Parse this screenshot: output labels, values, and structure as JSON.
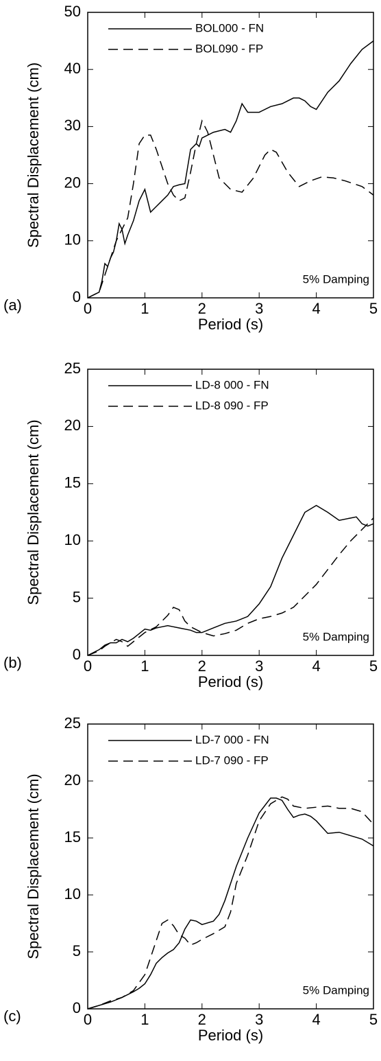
{
  "chart_data": [
    {
      "type": "line",
      "panel_label": "(a)",
      "xlabel": "Period (s)",
      "ylabel": "Spectral Displacement (cm)",
      "annotation": "5% Damping",
      "xlim": [
        0,
        5
      ],
      "xticks": [
        0,
        1,
        2,
        3,
        4,
        5
      ],
      "ylim": [
        0,
        50
      ],
      "yticks": [
        0,
        10,
        20,
        30,
        40,
        50
      ],
      "legend": "upper left",
      "series": [
        {
          "name": "BOL000 - FN",
          "color": "#000000",
          "line_style": "solid",
          "x": [
            0,
            0.1,
            0.2,
            0.25,
            0.3,
            0.35,
            0.4,
            0.45,
            0.5,
            0.55,
            0.6,
            0.65,
            0.7,
            0.8,
            0.9,
            1.0,
            1.1,
            1.2,
            1.3,
            1.4,
            1.5,
            1.6,
            1.7,
            1.8,
            1.9,
            1.95,
            2.0,
            2.2,
            2.4,
            2.5,
            2.6,
            2.7,
            2.8,
            3.0,
            3.2,
            3.4,
            3.6,
            3.7,
            3.8,
            3.9,
            4.0,
            4.2,
            4.4,
            4.6,
            4.8,
            5.0
          ],
          "values": [
            0,
            0.5,
            1,
            3,
            6,
            5.5,
            7,
            8,
            10,
            13,
            12,
            9.5,
            11,
            13.5,
            17,
            19,
            15,
            16,
            17,
            18,
            19.5,
            19.8,
            20,
            26,
            27,
            26.5,
            28,
            29,
            29.5,
            29,
            31,
            34,
            32.5,
            32.5,
            33.5,
            34,
            35,
            35,
            34.5,
            33.5,
            33,
            36,
            38,
            41,
            43.5,
            45
          ]
        },
        {
          "name": "BOL090 - FP",
          "color": "#000000",
          "line_style": "dashed",
          "x": [
            0,
            0.2,
            0.3,
            0.4,
            0.5,
            0.6,
            0.7,
            0.8,
            0.9,
            1.0,
            1.1,
            1.2,
            1.3,
            1.4,
            1.5,
            1.6,
            1.7,
            1.8,
            1.9,
            2.0,
            2.1,
            2.2,
            2.3,
            2.5,
            2.7,
            2.9,
            3.1,
            3.2,
            3.3,
            3.5,
            3.7,
            3.9,
            4.1,
            4.3,
            4.5,
            4.8,
            5.0
          ],
          "values": [
            0,
            1,
            4,
            7,
            10,
            12,
            14,
            20,
            27,
            28.5,
            28.5,
            26,
            23,
            20,
            18,
            17,
            17.5,
            22,
            27,
            31,
            29,
            25,
            21,
            19,
            18.5,
            21,
            25,
            26,
            25.5,
            22,
            19.5,
            20.5,
            21.2,
            21,
            20.5,
            19.5,
            18
          ]
        }
      ]
    },
    {
      "type": "line",
      "panel_label": "(b)",
      "xlabel": "Period (s)",
      "ylabel": "Spectral Displacement (cm)",
      "annotation": "5% Damping",
      "xlim": [
        0,
        5
      ],
      "xticks": [
        0,
        1,
        2,
        3,
        4,
        5
      ],
      "ylim": [
        0,
        25
      ],
      "yticks": [
        0,
        5,
        10,
        15,
        20,
        25
      ],
      "legend": "upper left",
      "series": [
        {
          "name": "LD-8 000 - FN",
          "color": "#000000",
          "line_style": "solid",
          "x": [
            0,
            0.2,
            0.3,
            0.4,
            0.5,
            0.6,
            0.7,
            0.8,
            0.9,
            1.0,
            1.1,
            1.2,
            1.3,
            1.4,
            1.5,
            1.6,
            1.8,
            1.9,
            2.0,
            2.2,
            2.4,
            2.6,
            2.8,
            3.0,
            3.2,
            3.4,
            3.6,
            3.8,
            4.0,
            4.2,
            4.4,
            4.6,
            4.7,
            4.8,
            4.9,
            5.0
          ],
          "values": [
            0,
            0.5,
            0.9,
            1.1,
            1.1,
            1.4,
            1.2,
            1.5,
            1.9,
            2.3,
            2.2,
            2.4,
            2.5,
            2.6,
            2.5,
            2.4,
            2.2,
            2.0,
            2.0,
            2.4,
            2.8,
            3.0,
            3.4,
            4.5,
            6.0,
            8.5,
            10.5,
            12.5,
            13.1,
            12.5,
            11.8,
            12.0,
            12.1,
            11.5,
            11.3,
            11.5
          ]
        },
        {
          "name": "LD-8 090 - FP",
          "color": "#000000",
          "line_style": "dashed",
          "x": [
            0,
            0.2,
            0.3,
            0.4,
            0.5,
            0.6,
            0.7,
            0.8,
            1.0,
            1.2,
            1.4,
            1.5,
            1.6,
            1.7,
            1.8,
            2.0,
            2.2,
            2.4,
            2.6,
            2.8,
            3.0,
            3.2,
            3.4,
            3.6,
            3.8,
            4.0,
            4.2,
            4.4,
            4.6,
            4.8,
            5.0
          ],
          "values": [
            0,
            0.4,
            0.8,
            1.1,
            1.4,
            1.2,
            0.8,
            1.2,
            2.0,
            2.5,
            3.5,
            4.2,
            4.0,
            3.0,
            2.5,
            2.0,
            1.7,
            1.9,
            2.2,
            2.8,
            3.2,
            3.4,
            3.7,
            4.2,
            5.2,
            6.2,
            7.5,
            8.8,
            10.0,
            11.0,
            12.0
          ]
        }
      ]
    },
    {
      "type": "line",
      "panel_label": "(c)",
      "xlabel": "Period (s)",
      "ylabel": "Spectral Displacement (cm)",
      "annotation": "5% Damping",
      "xlim": [
        0,
        5
      ],
      "xticks": [
        0,
        1,
        2,
        3,
        4,
        5
      ],
      "ylim": [
        0,
        25
      ],
      "yticks": [
        0,
        5,
        10,
        15,
        20,
        25
      ],
      "legend": "upper left",
      "series": [
        {
          "name": "LD-7 000 - FN",
          "color": "#000000",
          "line_style": "solid",
          "x": [
            0,
            0.2,
            0.4,
            0.6,
            0.8,
            0.9,
            1.0,
            1.1,
            1.2,
            1.3,
            1.4,
            1.5,
            1.6,
            1.7,
            1.8,
            1.9,
            2.0,
            2.2,
            2.3,
            2.4,
            2.6,
            2.8,
            3.0,
            3.2,
            3.3,
            3.4,
            3.5,
            3.6,
            3.7,
            3.8,
            3.9,
            4.0,
            4.2,
            4.4,
            4.6,
            4.8,
            5.0
          ],
          "values": [
            0,
            0.3,
            0.6,
            1.0,
            1.5,
            1.8,
            2.2,
            3,
            4,
            4.5,
            4.9,
            5.2,
            5.8,
            7,
            7.8,
            7.7,
            7.4,
            7.7,
            8.3,
            9.5,
            12.5,
            15,
            17.2,
            18.5,
            18.5,
            18.3,
            17.5,
            16.8,
            17,
            17.1,
            16.9,
            16.5,
            15.4,
            15.5,
            15.2,
            14.9,
            14.3
          ]
        },
        {
          "name": "LD-7 090 - FP",
          "color": "#000000",
          "line_style": "dashed",
          "x": [
            0,
            0.2,
            0.4,
            0.6,
            0.8,
            1.0,
            1.1,
            1.2,
            1.3,
            1.4,
            1.5,
            1.6,
            1.7,
            1.8,
            1.9,
            2.0,
            2.2,
            2.4,
            2.5,
            2.6,
            2.8,
            3.0,
            3.2,
            3.4,
            3.5,
            3.6,
            3.8,
            4.0,
            4.2,
            4.4,
            4.6,
            4.8,
            5.0
          ],
          "values": [
            0,
            0.3,
            0.7,
            1.0,
            1.6,
            3,
            4.5,
            6,
            7.5,
            7.8,
            7.3,
            6.5,
            6.2,
            5.6,
            5.8,
            6.1,
            6.6,
            7.2,
            8.5,
            11,
            13.5,
            16.5,
            18,
            18.6,
            18.4,
            17.8,
            17.6,
            17.7,
            17.8,
            17.6,
            17.6,
            17.3,
            16.2
          ]
        }
      ]
    }
  ]
}
